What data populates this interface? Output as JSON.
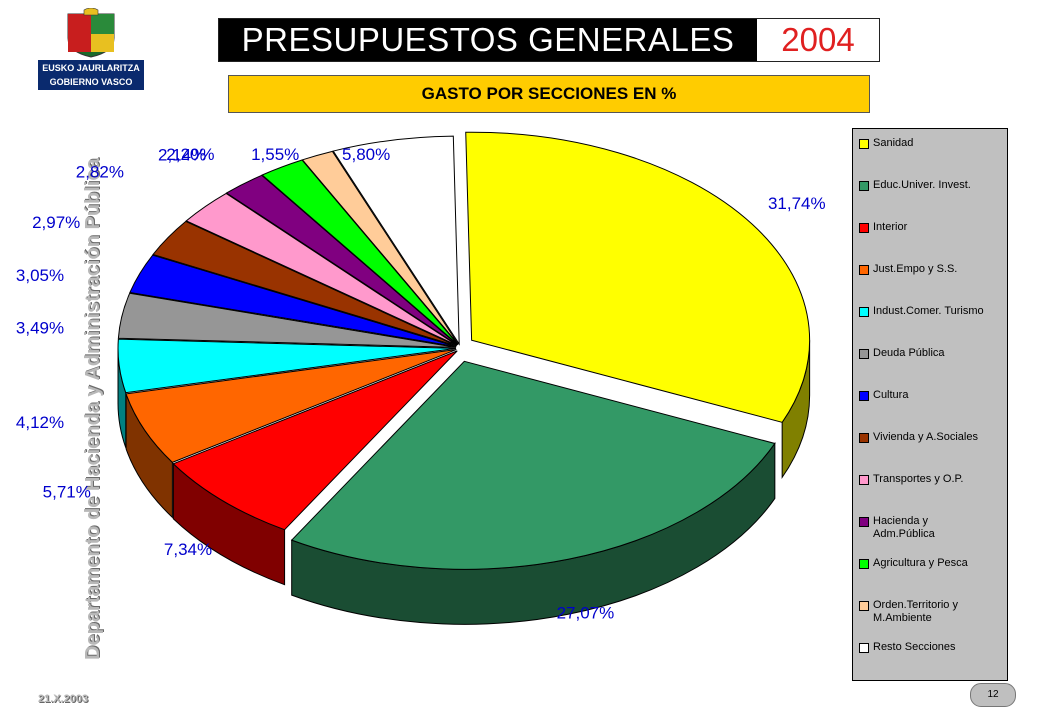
{
  "header": {
    "org_line1": "EUSKO JAURLARITZA",
    "org_line2": "GOBIERNO VASCO",
    "title": "PRESUPUESTOS GENERALES",
    "year": "2004",
    "subtitle": "GASTO POR SECCIONES EN %"
  },
  "sidebar": {
    "department": "Departamento de Hacienda y Administración Pública"
  },
  "footer": {
    "date": "21.X.2003",
    "page": "12"
  },
  "chart_data": {
    "type": "pie",
    "title": "GASTO POR SECCIONES EN %",
    "legend_position": "right",
    "categories": [
      "Sanidad",
      "Educ.Univer. Invest.",
      "Interior",
      "Just.Empo y S.S.",
      "Indust.Comer. Turismo",
      "Deuda Pública",
      "Cultura",
      "Vivienda y A.Sociales",
      "Transportes y O.P.",
      "Hacienda y\nAdm.Pública",
      "Agricultura y Pesca",
      "Orden.Territorio y\nM.Ambiente",
      "Resto Secciones"
    ],
    "values": [
      31.74,
      27.07,
      7.34,
      5.71,
      4.12,
      3.49,
      3.05,
      2.97,
      2.82,
      2.14,
      2.2,
      1.55,
      5.8
    ],
    "value_labels": [
      "31,74%",
      "27,07%",
      "7,34%",
      "5,71%",
      "4,12%",
      "3,49%",
      "3,05%",
      "2,97%",
      "2,82%",
      "2,14%",
      "2,20%",
      "1,55%",
      "5,80%"
    ],
    "colors": [
      "#ffff00",
      "#339966",
      "#ff0000",
      "#ff6600",
      "#00ffff",
      "#969696",
      "#0000ff",
      "#993300",
      "#ff99cc",
      "#800080",
      "#00ff00",
      "#ffcc99",
      "#ffffff"
    ]
  }
}
